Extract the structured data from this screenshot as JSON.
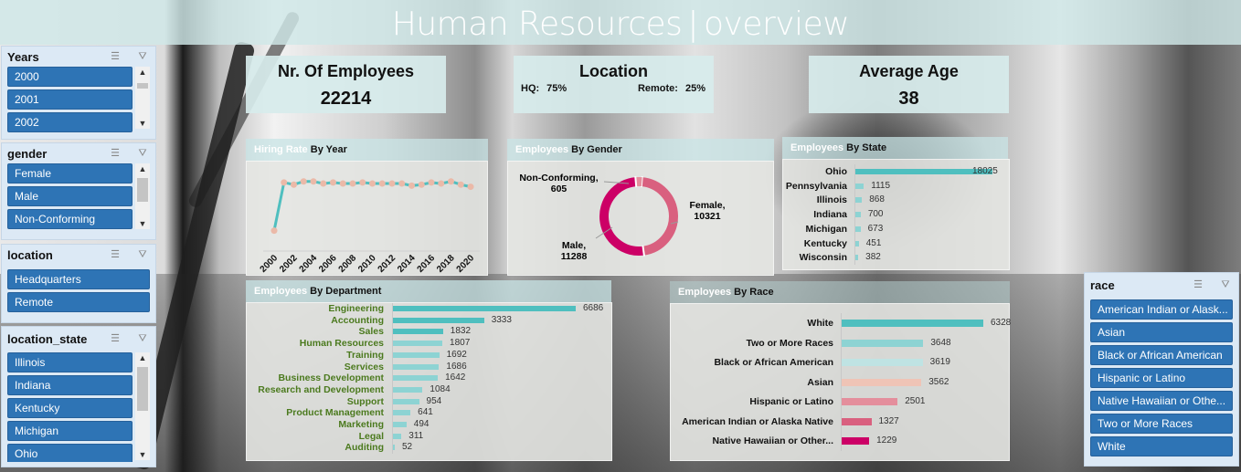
{
  "header": {
    "title": "Human Resources",
    "separator": "|",
    "subtitle": "overview"
  },
  "kpis": {
    "employees": {
      "title": "Nr. Of Employees",
      "value": "22214"
    },
    "location": {
      "title": "Location",
      "hq_label": "HQ:",
      "hq_value": "75%",
      "remote_label": "Remote:",
      "remote_value": "25%"
    },
    "age": {
      "title": "Average Age",
      "value": "38"
    }
  },
  "slicers": {
    "years": {
      "title": "Years",
      "items": [
        "2000",
        "2001",
        "2002"
      ]
    },
    "gender": {
      "title": "gender",
      "items": [
        "Female",
        "Male",
        "Non-Conforming"
      ]
    },
    "location": {
      "title": "location",
      "items": [
        "Headquarters",
        "Remote"
      ]
    },
    "location_state": {
      "title": "location_state",
      "items": [
        "Illinois",
        "Indiana",
        "Kentucky",
        "Michigan",
        "Ohio"
      ]
    },
    "race": {
      "title": "race",
      "items": [
        "American Indian or Alask...",
        "Asian",
        "Black or African American",
        "Hispanic or Latino",
        "Native Hawaiian or Othe...",
        "Two or More Races",
        "White"
      ]
    }
  },
  "icons": {
    "multi_select": "multi-select-icon",
    "clear_filter": "clear-filter-icon"
  },
  "colors": {
    "slicer_item": "#2e74b5",
    "teal": "#4fbfbf",
    "light_teal": "#8dd3d3",
    "pink_dark": "#cc0066",
    "pink_mid": "#d9607f",
    "dept_label": "#4b7a1e"
  },
  "chart_data": [
    {
      "id": "hiring_rate",
      "type": "line",
      "title_highlight": "Hiring Rate",
      "title": "By Year",
      "x": [
        "2000",
        "2001",
        "2002",
        "2003",
        "2004",
        "2005",
        "2006",
        "2007",
        "2008",
        "2009",
        "2010",
        "2011",
        "2012",
        "2013",
        "2014",
        "2015",
        "2016",
        "2017",
        "2018",
        "2019",
        "2020"
      ],
      "x_tick_labels": [
        "2000",
        "2002",
        "2004",
        "2006",
        "2008",
        "2010",
        "2012",
        "2014",
        "2016",
        "2018",
        "2020"
      ],
      "values_relative": [
        14,
        59,
        57,
        60,
        60,
        58,
        59,
        58,
        58,
        59,
        58,
        58,
        58,
        58,
        56,
        57,
        59,
        58,
        60,
        57,
        55
      ],
      "ylabel": "",
      "note": "y-axis unlabeled; values are relative heights"
    },
    {
      "id": "gender",
      "type": "pie",
      "donut": true,
      "title_highlight": "Employees",
      "title": "By Gender",
      "labels": [
        "Female",
        "Male",
        "Non-Conforming"
      ],
      "values": [
        10321,
        11288,
        605
      ],
      "data_labels": [
        "Female,\n10321",
        "Male,\n11288",
        "Non-Conforming,\n605"
      ]
    },
    {
      "id": "state",
      "type": "bar",
      "orientation": "horizontal",
      "title_highlight": "Employees",
      "title": "By State",
      "categories": [
        "Ohio",
        "Pennsylvania",
        "Illinois",
        "Indiana",
        "Michigan",
        "Kentucky",
        "Wisconsin"
      ],
      "values": [
        18025,
        1115,
        868,
        700,
        673,
        451,
        382
      ]
    },
    {
      "id": "department",
      "type": "bar",
      "orientation": "horizontal",
      "title_highlight": "Employees",
      "title": "By Department",
      "categories": [
        "Engineering",
        "Accounting",
        "Sales",
        "Human Resources",
        "Training",
        "Services",
        "Business Development",
        "Research and Development",
        "Support",
        "Product Management",
        "Marketing",
        "Legal",
        "Auditing"
      ],
      "values": [
        6686,
        3333,
        1832,
        1807,
        1692,
        1686,
        1642,
        1084,
        954,
        641,
        494,
        311,
        52
      ]
    },
    {
      "id": "race",
      "type": "bar",
      "orientation": "horizontal",
      "title_highlight": "Employees",
      "title": "By Race",
      "categories": [
        "White",
        "Two or More Races",
        "Black or African American",
        "Asian",
        "Hispanic or Latino",
        "American Indian or Alaska Native",
        "Native Hawaiian or Other..."
      ],
      "values": [
        6328,
        3648,
        3619,
        3562,
        2501,
        1327,
        1229
      ],
      "bar_colors": [
        "#4fbfbf",
        "#8dd3d3",
        "#bfe3e3",
        "#efc4b6",
        "#e48e9c",
        "#d9607f",
        "#cc0066"
      ]
    }
  ]
}
